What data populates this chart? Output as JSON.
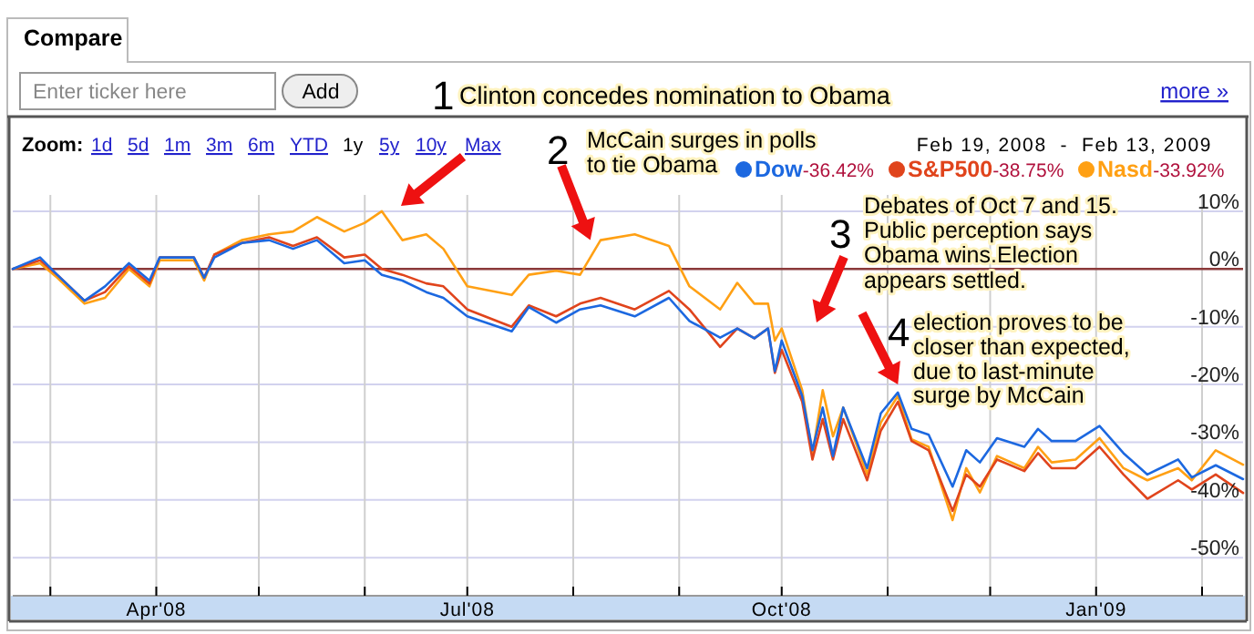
{
  "chart_data": {
    "type": "line",
    "subtitle": "Feb 19, 2008  -  Feb 13, 2009",
    "x": [
      "2008-02-19",
      "2008-02-27",
      "2008-03-03",
      "2008-03-11",
      "2008-03-17",
      "2008-03-24",
      "2008-03-30",
      "2008-04-02",
      "2008-04-12",
      "2008-04-15",
      "2008-04-18",
      "2008-04-26",
      "2008-05-04",
      "2008-05-11",
      "2008-05-18",
      "2008-05-26",
      "2008-06-01",
      "2008-06-06",
      "2008-06-12",
      "2008-06-19",
      "2008-06-24",
      "2008-07-01",
      "2008-07-14",
      "2008-07-19",
      "2008-07-27",
      "2008-08-03",
      "2008-08-09",
      "2008-08-19",
      "2008-08-29",
      "2008-09-04",
      "2008-09-13",
      "2008-09-18",
      "2008-09-23",
      "2008-09-27",
      "2008-09-29",
      "2008-10-01",
      "2008-10-07",
      "2008-10-10",
      "2008-10-13",
      "2008-10-16",
      "2008-10-19",
      "2008-10-26",
      "2008-10-30",
      "2008-11-04",
      "2008-11-08",
      "2008-11-13",
      "2008-11-20",
      "2008-11-24",
      "2008-11-28",
      "2008-12-03",
      "2008-12-11",
      "2008-12-15",
      "2008-12-19",
      "2008-12-26",
      "2009-01-02",
      "2009-01-09",
      "2009-01-16",
      "2009-01-25",
      "2009-01-29",
      "2009-02-05",
      "2009-02-13"
    ],
    "series": [
      {
        "name": "Dow",
        "color": "#1c68e0",
        "values": [
          0,
          2,
          -1,
          -5.5,
          -3,
          1,
          -2,
          2,
          2,
          -1.5,
          2,
          4.5,
          5,
          3.5,
          5,
          1,
          1.5,
          -1,
          -2,
          -4,
          -5,
          -8.2,
          -10.8,
          -6.6,
          -9.3,
          -7,
          -6.3,
          -8.2,
          -5,
          -9,
          -11.9,
          -10.3,
          -12,
          -10.3,
          -17.7,
          -12.4,
          -22,
          -31.4,
          -24,
          -32.4,
          -24,
          -34.5,
          -25,
          -21.4,
          -27.7,
          -28.7,
          -37.7,
          -31.4,
          -33.5,
          -29.3,
          -30.8,
          -27.7,
          -29.8,
          -29.8,
          -27.2,
          -31.9,
          -35.6,
          -33,
          -36.1,
          -34,
          -36.4
        ]
      },
      {
        "name": "S&P500",
        "color": "#e0441c",
        "values": [
          0,
          1.5,
          -1,
          -5.5,
          -4,
          0.5,
          -2.5,
          2,
          2,
          -1.5,
          2.5,
          4.5,
          5.5,
          4,
          5.5,
          2,
          2.5,
          0,
          -1,
          -2.5,
          -3,
          -7,
          -10,
          -6.3,
          -8.2,
          -6,
          -5,
          -7,
          -3.8,
          -7,
          -13.5,
          -10.3,
          -12,
          -10.3,
          -18,
          -14,
          -23,
          -33,
          -26,
          -33,
          -26,
          -36.6,
          -28,
          -23,
          -29.8,
          -31.4,
          -41.9,
          -35.6,
          -37.7,
          -33,
          -35,
          -31.9,
          -34.5,
          -34.5,
          -30.8,
          -35.6,
          -39.8,
          -36.6,
          -38.2,
          -35.6,
          -38.8
        ]
      },
      {
        "name": "Nasd",
        "color": "#ffa014",
        "values": [
          0,
          1,
          -1.5,
          -6,
          -5,
          0,
          -3,
          1.5,
          1.5,
          -2,
          2.5,
          5,
          6,
          6.5,
          9,
          6.5,
          8,
          10,
          5,
          6,
          3.5,
          -3,
          -4.5,
          -1,
          -0.3,
          -1,
          5,
          6,
          4,
          -3,
          -7,
          -2.4,
          -6,
          -6,
          -12.4,
          -10.3,
          -21,
          -32,
          -21,
          -29,
          -24,
          -35.6,
          -26.6,
          -22,
          -29.5,
          -30.8,
          -43.5,
          -34.5,
          -38.7,
          -32.4,
          -34.5,
          -30.8,
          -33.5,
          -33,
          -29.3,
          -34.5,
          -36.6,
          -34.5,
          -36.6,
          -31.4,
          -33.9
        ]
      }
    ],
    "xlim": [
      "2008-02-19",
      "2009-02-13"
    ],
    "xticks": [
      {
        "value": "2008-03-01",
        "label": null
      },
      {
        "value": "2008-04-01",
        "label": "Apr'08"
      },
      {
        "value": "2008-05-01",
        "label": null
      },
      {
        "value": "2008-06-01",
        "label": null
      },
      {
        "value": "2008-07-01",
        "label": "Jul'08"
      },
      {
        "value": "2008-08-01",
        "label": null
      },
      {
        "value": "2008-09-01",
        "label": null
      },
      {
        "value": "2008-10-01",
        "label": "Oct'08"
      },
      {
        "value": "2008-11-01",
        "label": null
      },
      {
        "value": "2008-12-01",
        "label": null
      },
      {
        "value": "2009-01-01",
        "label": "Jan'09"
      },
      {
        "value": "2009-02-01",
        "label": null
      }
    ],
    "ylim": [
      -56.6,
      26.4
    ],
    "yticks": [
      {
        "value": 10,
        "label": "10%"
      },
      {
        "value": 0,
        "label": "0%"
      },
      {
        "value": -10,
        "label": "-10%"
      },
      {
        "value": -20,
        "label": "-20%"
      },
      {
        "value": -30,
        "label": "-30%"
      },
      {
        "value": -40,
        "label": "-40%"
      },
      {
        "value": -50,
        "label": "-50%"
      }
    ],
    "grid": true,
    "legend": "top right",
    "ref_lines": [
      {
        "axis": "y",
        "value": 0,
        "color": "#8b3a3a"
      }
    ],
    "annotations": [
      "Compare",
      "Enter ticker here",
      "Add",
      "more »",
      "Zoom:",
      "1d",
      "5d",
      "1m",
      "3m",
      "6m",
      "YTD",
      "1y",
      "5y",
      "10y",
      "Max",
      "1",
      "Clinton concedes nomination to Obama",
      "2",
      {
        "text": "McCain surges in polls\nto tie Obama",
        "x": "2008-08-06",
        "y": 5
      },
      "3",
      "Debates of Oct 7 and 15.\nPublic perception says\nObama wins.Election\nappears settled.",
      "4",
      {
        "text": "election proves to be\ncloser than expected,\ndue to last-minute\nsurge by McCain",
        "x": "2008-11-04",
        "y": -20
      },
      "-36.42%",
      "-38.75%",
      "-33.92%"
    ]
  }
}
